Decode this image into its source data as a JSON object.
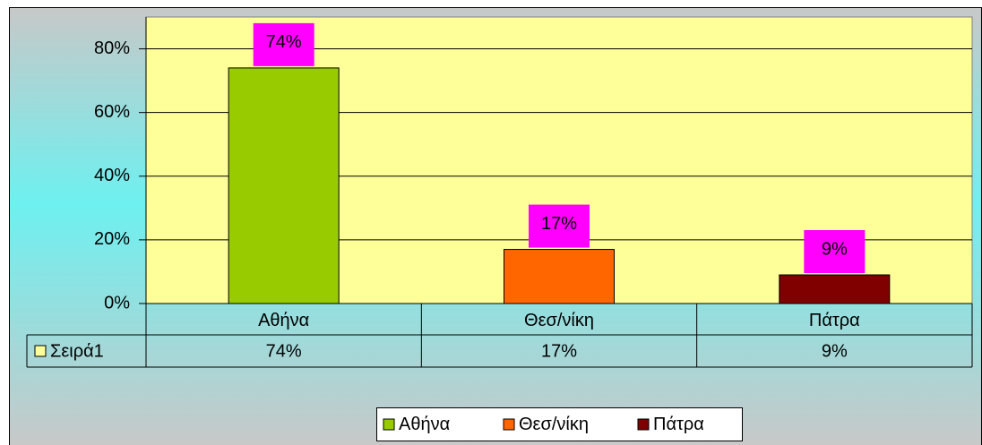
{
  "chart_data": {
    "type": "bar",
    "categories": [
      "Αθήνα",
      "Θεσ/νίκη",
      "Πάτρα"
    ],
    "series": [
      {
        "name": "Σειρά1",
        "values": [
          74,
          17,
          9
        ],
        "value_labels": [
          "74%",
          "17%",
          "9%"
        ]
      }
    ],
    "colors": [
      "#99cc00",
      "#ff6600",
      "#800000"
    ],
    "label_color": "#ff00ff",
    "plot_color": "#ffff99",
    "ylim": [
      0,
      90
    ],
    "yticks": [
      {
        "value": 0,
        "label": "0%"
      },
      {
        "value": 20,
        "label": "20%"
      },
      {
        "value": 40,
        "label": "40%"
      },
      {
        "value": 60,
        "label": "60%"
      },
      {
        "value": 80,
        "label": "80%"
      }
    ],
    "grid": true
  }
}
